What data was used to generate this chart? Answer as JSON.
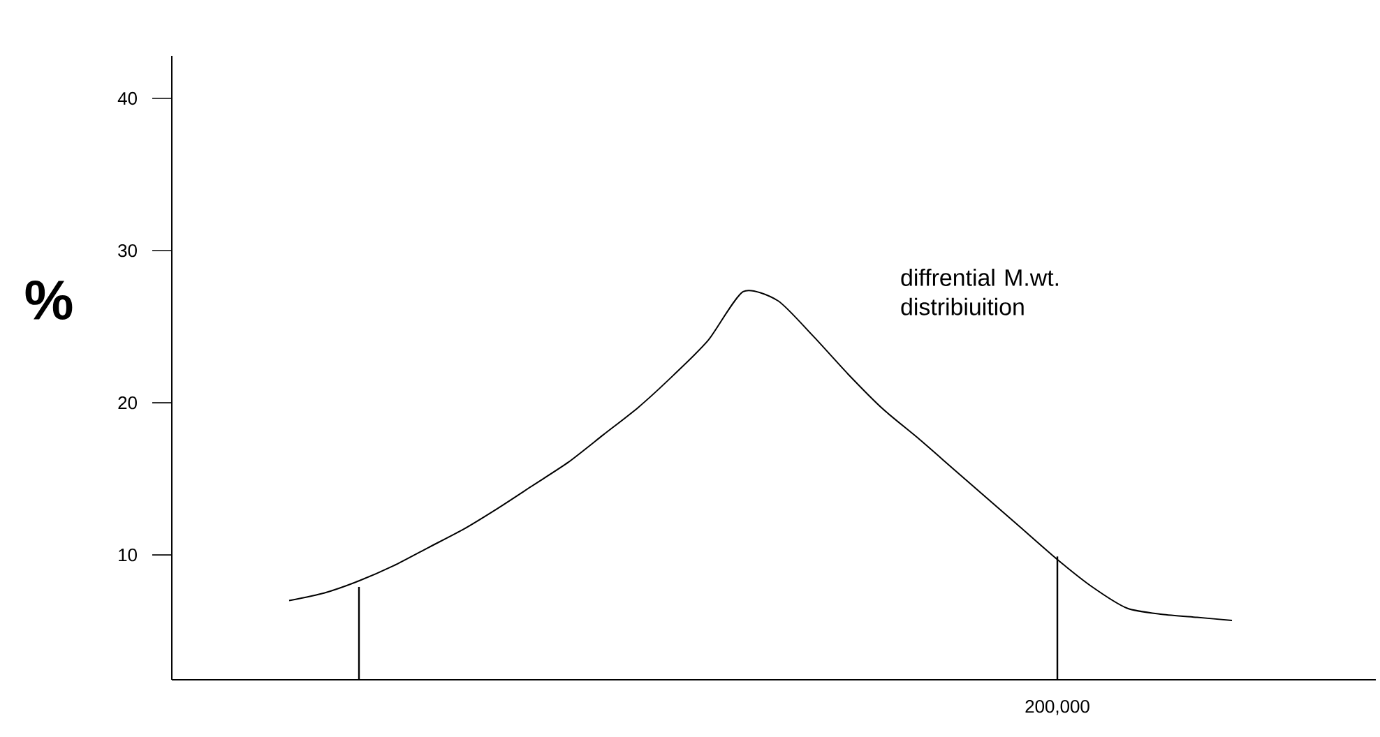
{
  "chart_data": {
    "type": "line",
    "ylabel": "%",
    "categories": [
      null,
      null,
      null,
      null,
      null,
      null,
      null,
      null,
      null,
      null,
      null,
      null,
      null,
      null,
      null,
      null,
      null,
      null,
      null,
      null,
      null,
      null,
      "200,000",
      null,
      null,
      null,
      null,
      null
    ],
    "series": [
      {
        "color": "#000000",
        "values": [
          7.0,
          7.5,
          8.3,
          9.3,
          10.5,
          11.7,
          13.1,
          14.6,
          16.1,
          17.9,
          19.7,
          21.8,
          24.1,
          27.3,
          26.7,
          24.4,
          21.9,
          19.6,
          17.7,
          15.7,
          13.7,
          11.7,
          9.7,
          7.9,
          6.5,
          6.1,
          5.9,
          5.7
        ]
      },
      {
        "type": "bar",
        "color": "#000000",
        "values": [
          null,
          null,
          7.9,
          null,
          null,
          null,
          null,
          null,
          null,
          null,
          null,
          null,
          null,
          null,
          null,
          null,
          null,
          null,
          null,
          null,
          null,
          null,
          9.9,
          null,
          null,
          null,
          null,
          null
        ]
      }
    ],
    "ylim": [
      1.8,
      42.8
    ],
    "yticks": [
      10,
      20,
      30,
      40
    ],
    "annotations": [
      "diffrential M.wt. distribiuition"
    ]
  }
}
